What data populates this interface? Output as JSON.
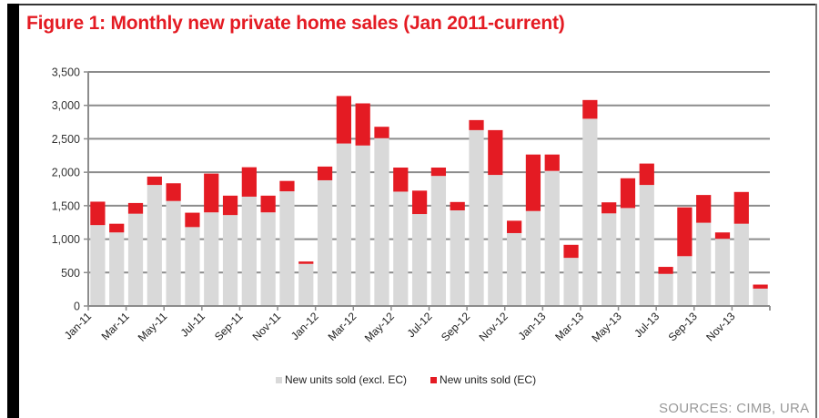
{
  "title": "Figure 1: Monthly new private home sales (Jan 2011-current)",
  "source": "SOURCES: CIMB, URA",
  "chart_data": {
    "type": "bar",
    "stacked": true,
    "title": "Figure 1: Monthly new private home sales (Jan 2011-current)",
    "xlabel": "",
    "ylabel": "",
    "ylim": [
      0,
      3500
    ],
    "yticks": [
      0,
      500,
      1000,
      1500,
      2000,
      2500,
      3000,
      3500
    ],
    "ytick_labels": [
      "0",
      "500",
      "1,000",
      "1,500",
      "2,000",
      "2,500",
      "3,000",
      "3,500"
    ],
    "grid": true,
    "legend_position": "bottom-center",
    "categories": [
      "Jan-11",
      "Feb-11",
      "Mar-11",
      "Apr-11",
      "May-11",
      "Jun-11",
      "Jul-11",
      "Aug-11",
      "Sep-11",
      "Oct-11",
      "Nov-11",
      "Dec-11",
      "Jan-12",
      "Feb-12",
      "Mar-12",
      "Apr-12",
      "May-12",
      "Jun-12",
      "Jul-12",
      "Aug-12",
      "Sep-12",
      "Oct-12",
      "Nov-12",
      "Dec-12",
      "Jan-13",
      "Feb-13",
      "Mar-13",
      "Apr-13",
      "May-13",
      "Jun-13",
      "Jul-13",
      "Aug-13",
      "Sep-13",
      "Oct-13",
      "Nov-13",
      "Dec-13"
    ],
    "xtick_labels": [
      "Jan-11",
      "Mar-11",
      "May-11",
      "Jul-11",
      "Sep-11",
      "Nov-11",
      "Jan-12",
      "Mar-12",
      "May-12",
      "Jul-12",
      "Sep-12",
      "Nov-12",
      "Jan-13",
      "Mar-13",
      "May-13",
      "Jul-13",
      "Sep-13",
      "Nov-13"
    ],
    "series": [
      {
        "name": "New units sold (excl. EC)",
        "color": "#d9d9d9",
        "values": [
          1210,
          1100,
          1380,
          1810,
          1570,
          1180,
          1400,
          1360,
          1635,
          1400,
          1715,
          630,
          1880,
          2430,
          2400,
          2510,
          1710,
          1375,
          1945,
          1430,
          2630,
          1960,
          1090,
          1420,
          2020,
          720,
          2800,
          1385,
          1465,
          1810,
          480,
          745,
          1245,
          1005,
          1230,
          260
        ]
      },
      {
        "name": "New units sold (EC)",
        "color": "#e41b23",
        "values": [
          350,
          130,
          160,
          125,
          265,
          215,
          580,
          290,
          440,
          250,
          155,
          35,
          205,
          710,
          630,
          170,
          360,
          350,
          125,
          125,
          150,
          670,
          185,
          845,
          245,
          195,
          280,
          165,
          445,
          320,
          105,
          730,
          415,
          95,
          475,
          60
        ]
      }
    ]
  }
}
